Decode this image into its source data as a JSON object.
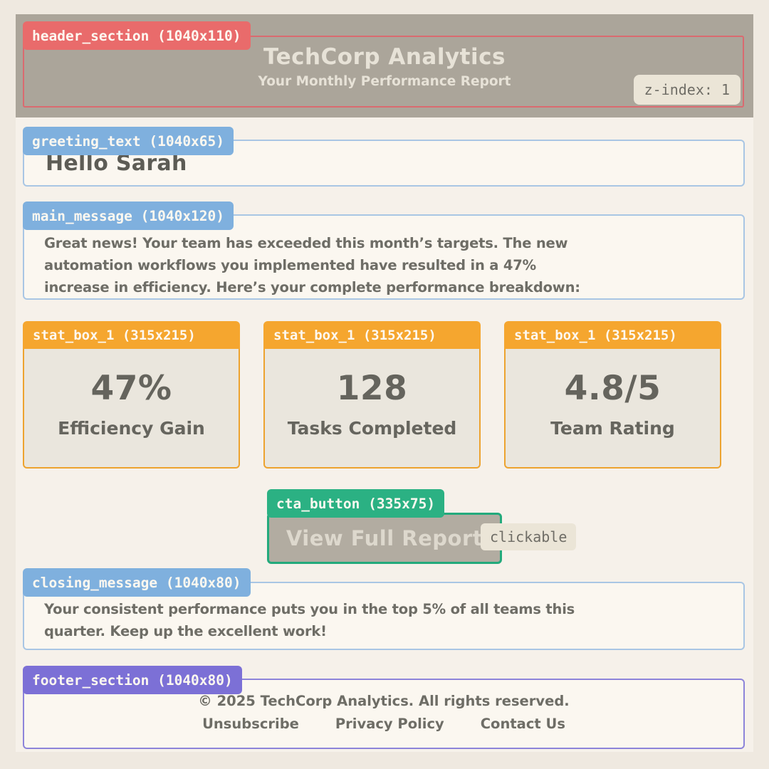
{
  "header": {
    "annotation": "header_section (1040x110)",
    "title": "TechCorp Analytics",
    "subtitle": "Your Monthly Performance Report",
    "z_index_badge": "z-index: 1"
  },
  "greeting": {
    "annotation": "greeting_text (1040x65)",
    "text": "Hello Sarah"
  },
  "main_message": {
    "annotation": "main_message (1040x120)",
    "lines": [
      "Great news! Your team has exceeded this month’s targets. The new",
      "automation workflows you implemented have resulted in a 47%",
      "increase in efficiency. Here’s your complete performance breakdown:"
    ]
  },
  "stats": [
    {
      "annotation": "stat_box_1 (315x215)",
      "value": "47%",
      "label": "Efficiency Gain"
    },
    {
      "annotation": "stat_box_1 (315x215)",
      "value": "128",
      "label": "Tasks Completed"
    },
    {
      "annotation": "stat_box_1 (315x215)",
      "value": "4.8/5",
      "label": "Team Rating"
    }
  ],
  "cta": {
    "annotation": "cta_button (335x75)",
    "label": "View Full Report",
    "badge": "clickable"
  },
  "closing": {
    "annotation": "closing_message (1040x80)",
    "lines": [
      "Your consistent performance puts you in the top 5% of all teams this",
      "quarter. Keep up the excellent work!"
    ]
  },
  "footer": {
    "annotation": "footer_section (1040x80)",
    "copyright": "© 2025 TechCorp Analytics. All rights reserved.",
    "links": [
      "Unsubscribe",
      "Privacy Policy",
      "Contact Us"
    ]
  },
  "colors": {
    "page_bg": "#efe9e0",
    "panel_bg": "#f6f1ea",
    "box_bg": "#fbf7f0",
    "header_bg": "#aba59a",
    "annotation_red": "#e96b6b",
    "annotation_blue": "#7fb0de",
    "annotation_orange": "#f5a62f",
    "annotation_green": "#2bb183",
    "annotation_purple": "#7c70d6",
    "badge_bg": "#ebe5d7",
    "body_text": "#6e6d66",
    "cta_fill": "#b2aca1"
  }
}
